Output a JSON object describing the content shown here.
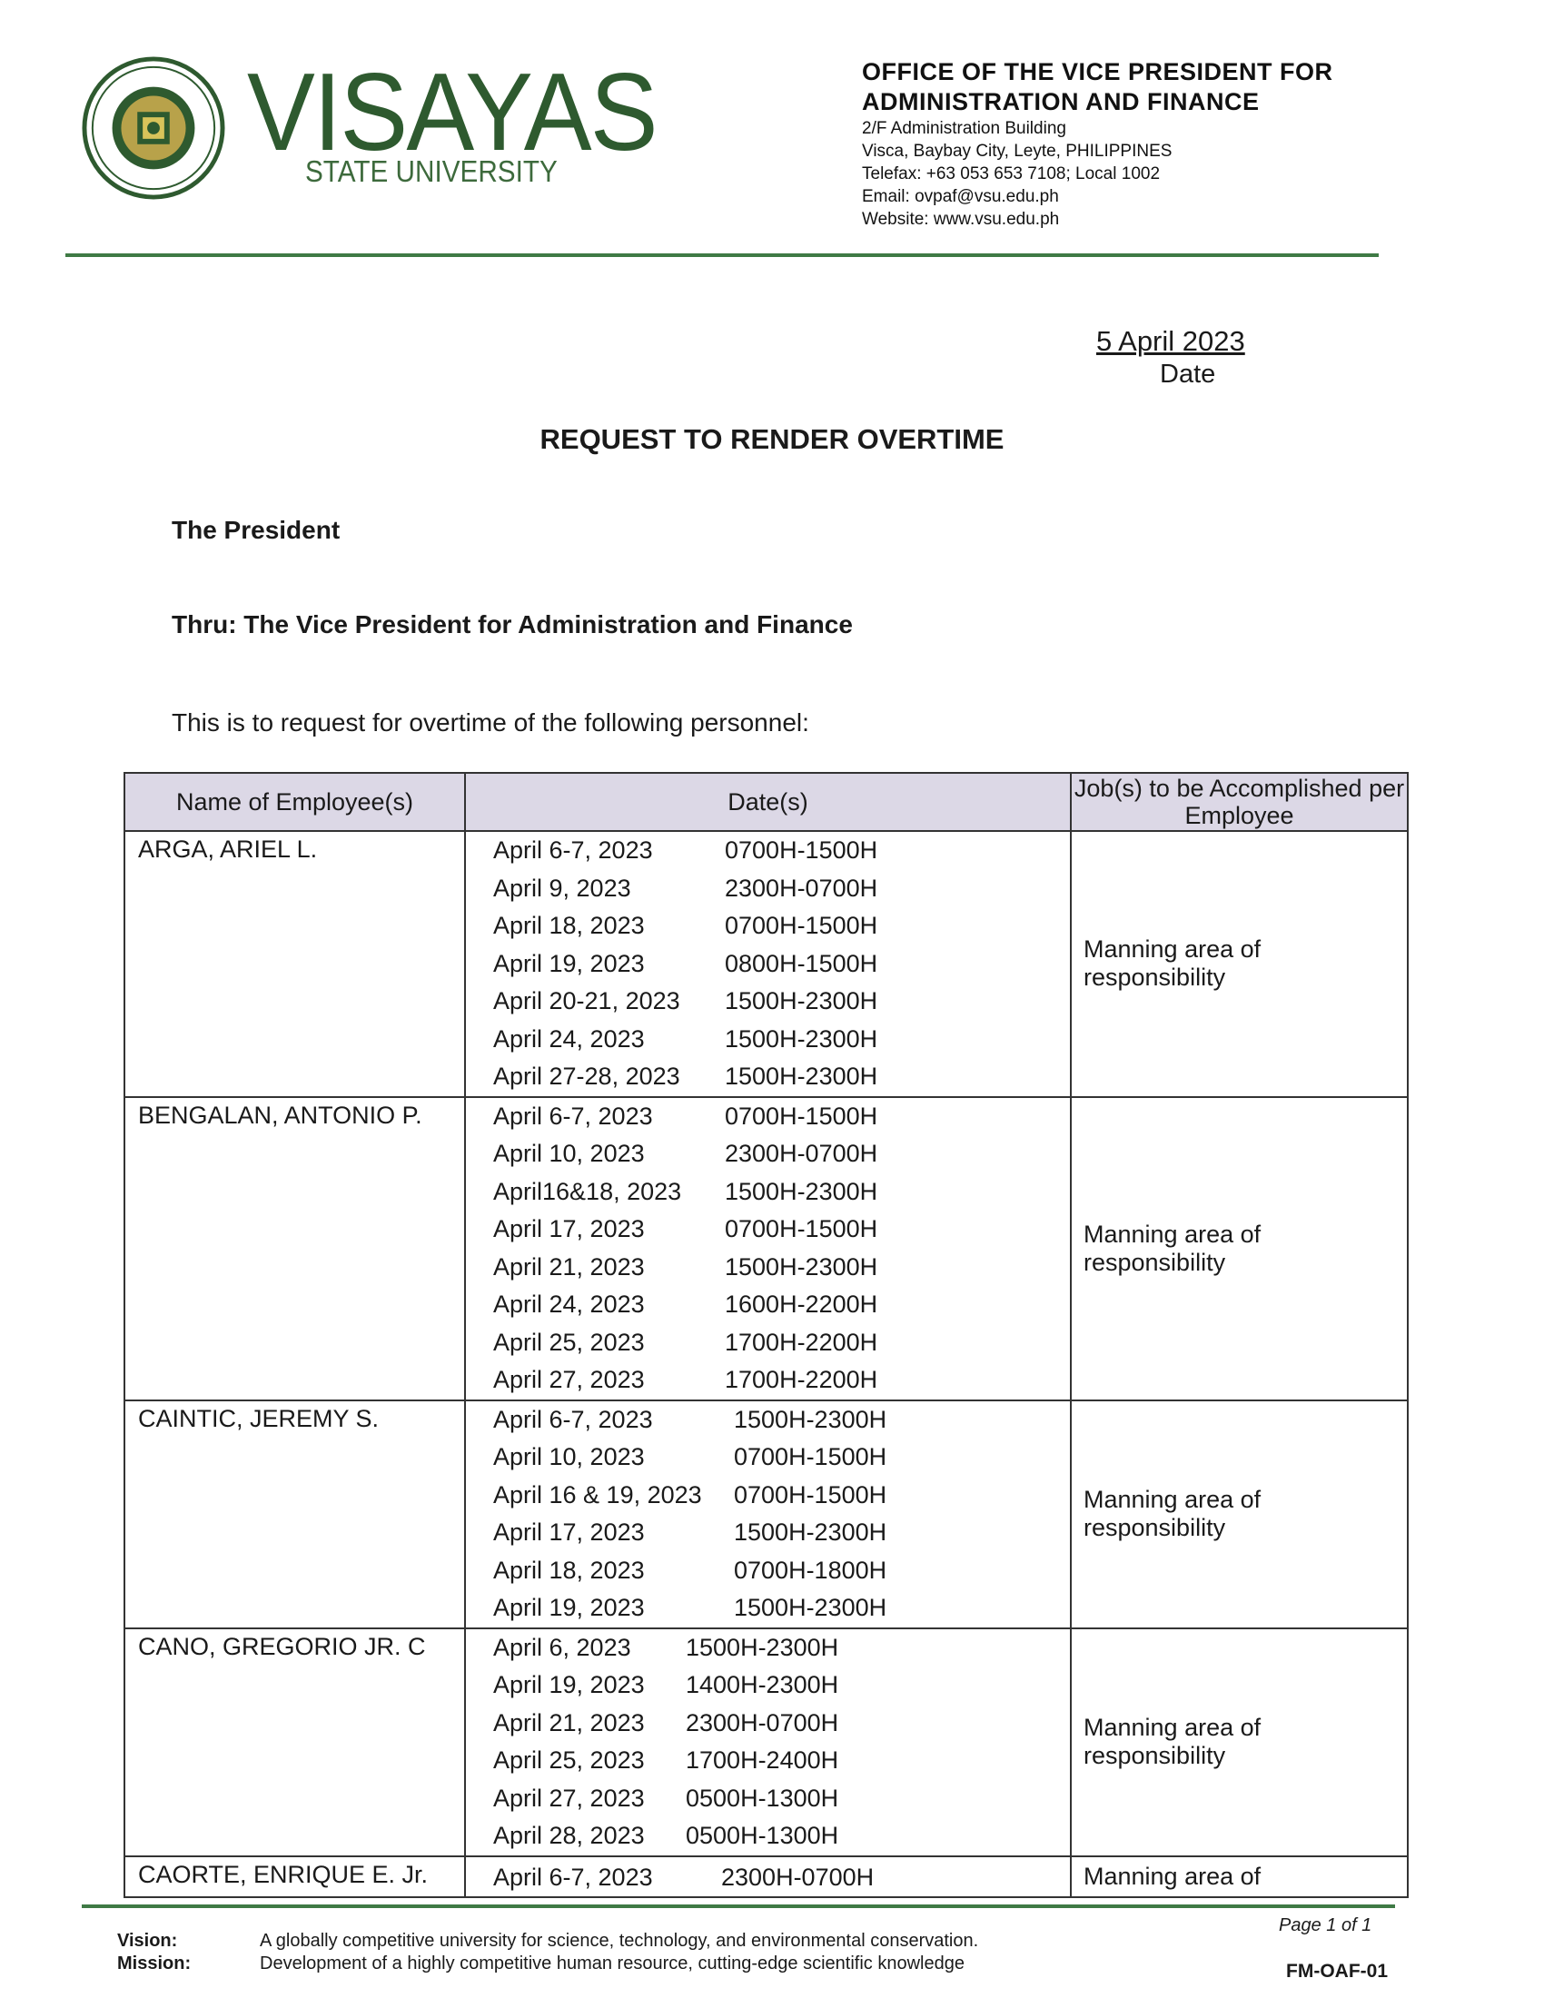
{
  "letterhead": {
    "brand_main": "VISAYAS",
    "brand_sub": "STATE UNIVERSITY",
    "seal_text": "VISAYAS STATE UNIVERSITY",
    "office_line1": "OFFICE OF THE VICE PRESIDENT FOR",
    "office_line2": "ADMINISTRATION AND FINANCE",
    "address1": "2/F Administration Building",
    "address2": "Visca, Baybay City, Leyte, PHILIPPINES",
    "telefax": "Telefax: +63 053 653 7108; Local 1002",
    "email": "Email: ovpaf@vsu.edu.ph",
    "website": "Website: www.vsu.edu.ph",
    "brand_color": "#2e5a2f"
  },
  "date": {
    "value": "5 April 2023",
    "label": "Date"
  },
  "title": "REQUEST TO RENDER OVERTIME",
  "addressee": "The President",
  "thru": "Thru: The Vice President for Administration and Finance",
  "intro": "This is to request for overtime of the following personnel:",
  "table": {
    "headers": [
      "Name of Employee(s)",
      "Date(s)",
      "Job(s) to be Accomplished per Employee"
    ],
    "header_color": "#dcd8e6",
    "rows": [
      {
        "name": "ARGA, ARIEL L.",
        "job": "Manning area of responsibility",
        "entries": [
          {
            "date": "April 6-7, 2023",
            "time": "0700H-1500H"
          },
          {
            "date": "April 9, 2023",
            "time": "2300H-0700H"
          },
          {
            "date": "April 18, 2023",
            "time": "0700H-1500H"
          },
          {
            "date": "April 19, 2023",
            "time": "0800H-1500H"
          },
          {
            "date": "April 20-21, 2023",
            "time": "1500H-2300H"
          },
          {
            "date": "April 24, 2023",
            "time": "1500H-2300H"
          },
          {
            "date": "April 27-28, 2023",
            "time": "1500H-2300H"
          }
        ]
      },
      {
        "name": "BENGALAN, ANTONIO P.",
        "job": "Manning area of responsibility",
        "entries": [
          {
            "date": "April 6-7, 2023",
            "time": "0700H-1500H"
          },
          {
            "date": "April 10, 2023",
            "time": "2300H-0700H"
          },
          {
            "date": "April16&18, 2023",
            "time": "1500H-2300H"
          },
          {
            "date": "April 17, 2023",
            "time": "0700H-1500H"
          },
          {
            "date": "April 21, 2023",
            "time": "1500H-2300H"
          },
          {
            "date": "April 24, 2023",
            "time": "1600H-2200H"
          },
          {
            "date": "April 25, 2023",
            "time": "1700H-2200H"
          },
          {
            "date": "April 27, 2023",
            "time": "1700H-2200H"
          }
        ]
      },
      {
        "name": "CAINTIC, JEREMY S.",
        "job": "Manning area of responsibility",
        "entries": [
          {
            "date": "April 6-7, 2023",
            "time": "1500H-2300H"
          },
          {
            "date": "April 10, 2023",
            "time": "0700H-1500H"
          },
          {
            "date": "April 16 & 19, 2023",
            "time": "0700H-1500H"
          },
          {
            "date": "April 17, 2023",
            "time": "1500H-2300H"
          },
          {
            "date": "April 18, 2023",
            "time": "0700H-1800H"
          },
          {
            "date": "April 19, 2023",
            "time": "1500H-2300H"
          }
        ]
      },
      {
        "name": "CANO, GREGORIO JR. C",
        "job": "Manning area of responsibility",
        "entries": [
          {
            "date": "April 6, 2023",
            "time": "1500H-2300H"
          },
          {
            "date": "April 19, 2023",
            "time": "1400H-2300H"
          },
          {
            "date": "April 21, 2023",
            "time": "2300H-0700H"
          },
          {
            "date": "April 25, 2023",
            "time": "1700H-2400H"
          },
          {
            "date": "April 27, 2023",
            "time": "0500H-1300H"
          },
          {
            "date": "April 28, 2023",
            "time": "0500H-1300H"
          }
        ]
      },
      {
        "name": "CAORTE, ENRIQUE E. Jr.",
        "job": "Manning area of",
        "entries": [
          {
            "date": "April 6-7, 2023",
            "time": "2300H-0700H"
          }
        ]
      }
    ]
  },
  "footer": {
    "vision_label": "Vision:",
    "vision": "A globally competitive university for science, technology, and environmental conservation.",
    "mission_label": "Mission:",
    "mission": "Development of a highly competitive human resource, cutting-edge scientific knowledge",
    "page": "Page 1 of 1",
    "form_code": "FM-OAF-01"
  }
}
